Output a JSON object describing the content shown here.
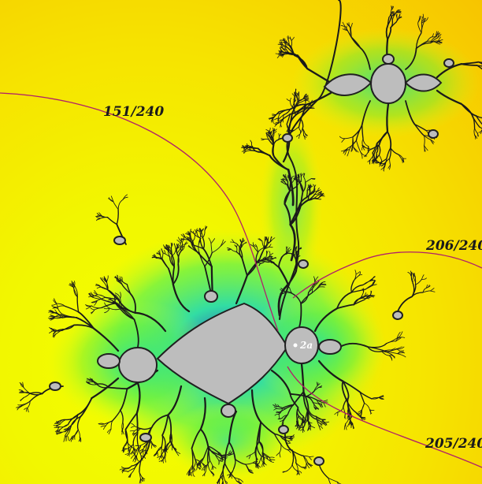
{
  "figure": {
    "description_colors": {
      "background_outer": "#f7c400",
      "background_inner": "#f2f700",
      "halo_green": "#20e070",
      "halo_blue": "#3040e0",
      "body_gray": "#bdbdbd",
      "outline": "#202020",
      "ray": "#b0206a"
    },
    "ray_labels": {
      "ray_151": "151/240",
      "ray_206": "206/240",
      "ray_205": "205/240"
    },
    "point_label": "2a"
  }
}
